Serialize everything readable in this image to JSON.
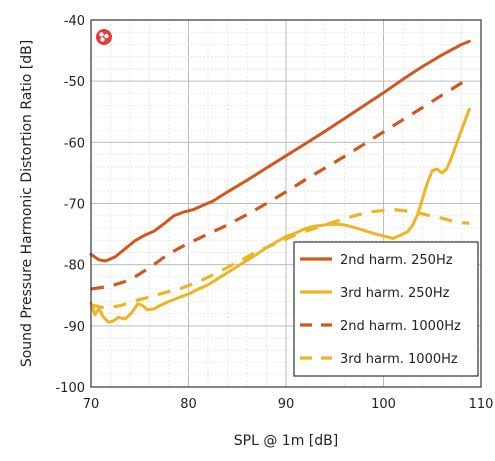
{
  "chart_data": {
    "type": "line",
    "title": "",
    "xlabel": "SPL @ 1m [dB]",
    "ylabel": "Sound Pressure Harmonic Distortion Ratio [dB]",
    "xlim": [
      70,
      110
    ],
    "ylim": [
      -100,
      -40
    ],
    "x_ticks": [
      70,
      80,
      90,
      100,
      110
    ],
    "y_ticks": [
      -40,
      -50,
      -60,
      -70,
      -80,
      -90,
      -100
    ],
    "grid": true,
    "legend_position": "bottom-right",
    "series": [
      {
        "name": "2nd harm. 250Hz",
        "color": "#d4561c",
        "style": "solid",
        "points": [
          [
            70,
            -78.3
          ],
          [
            70.8,
            -79.2
          ],
          [
            71.5,
            -79.4
          ],
          [
            72.5,
            -78.7
          ],
          [
            73.5,
            -77.4
          ],
          [
            74.5,
            -76.1
          ],
          [
            75.5,
            -75.2
          ],
          [
            76.5,
            -74.5
          ],
          [
            77.5,
            -73.3
          ],
          [
            78.5,
            -72.0
          ],
          [
            79.5,
            -71.4
          ],
          [
            80.5,
            -71.0
          ],
          [
            81.5,
            -70.3
          ],
          [
            82.5,
            -69.6
          ],
          [
            84,
            -68.1
          ],
          [
            86,
            -66.2
          ],
          [
            88,
            -64.2
          ],
          [
            90,
            -62.2
          ],
          [
            92,
            -60.2
          ],
          [
            94,
            -58.2
          ],
          [
            96,
            -56.1
          ],
          [
            98,
            -54.0
          ],
          [
            100,
            -51.9
          ],
          [
            102,
            -49.7
          ],
          [
            104,
            -47.6
          ],
          [
            106,
            -45.7
          ],
          [
            108,
            -44.0
          ],
          [
            108.8,
            -43.5
          ]
        ]
      },
      {
        "name": "3rd harm. 250Hz",
        "color": "#f0b323",
        "style": "solid",
        "points": [
          [
            70,
            -86.3
          ],
          [
            70.4,
            -88.2
          ],
          [
            70.8,
            -87.2
          ],
          [
            71.3,
            -88.6
          ],
          [
            71.8,
            -89.4
          ],
          [
            72.3,
            -89.2
          ],
          [
            72.8,
            -88.6
          ],
          [
            73.5,
            -88.9
          ],
          [
            74.2,
            -87.8
          ],
          [
            74.8,
            -86.4
          ],
          [
            75.3,
            -86.7
          ],
          [
            75.8,
            -87.4
          ],
          [
            76.5,
            -87.2
          ],
          [
            77.2,
            -86.6
          ],
          [
            78,
            -86.0
          ],
          [
            79,
            -85.4
          ],
          [
            80,
            -84.8
          ],
          [
            81,
            -84.0
          ],
          [
            82,
            -83.3
          ],
          [
            83,
            -82.3
          ],
          [
            84,
            -81.3
          ],
          [
            85,
            -80.3
          ],
          [
            86,
            -79.3
          ],
          [
            87,
            -78.3
          ],
          [
            88,
            -77.2
          ],
          [
            89,
            -76.3
          ],
          [
            90,
            -75.4
          ],
          [
            91,
            -74.8
          ],
          [
            92,
            -74.1
          ],
          [
            93,
            -73.7
          ],
          [
            94,
            -73.5
          ],
          [
            95,
            -73.4
          ],
          [
            96,
            -73.5
          ],
          [
            97,
            -73.9
          ],
          [
            98,
            -74.4
          ],
          [
            99,
            -74.9
          ],
          [
            100,
            -75.3
          ],
          [
            101,
            -75.7
          ],
          [
            102,
            -75.0
          ],
          [
            102.5,
            -74.6
          ],
          [
            103,
            -73.5
          ],
          [
            103.5,
            -71.8
          ],
          [
            104,
            -69.2
          ],
          [
            104.5,
            -66.6
          ],
          [
            105,
            -64.6
          ],
          [
            105.5,
            -64.4
          ],
          [
            106,
            -65.0
          ],
          [
            106.5,
            -64.3
          ],
          [
            107,
            -62.4
          ],
          [
            107.5,
            -60.2
          ],
          [
            108,
            -58.0
          ],
          [
            108.8,
            -54.6
          ]
        ]
      },
      {
        "name": "2nd harm. 1000Hz",
        "color": "#d4561c",
        "style": "dashed",
        "points": [
          [
            70,
            -84.0
          ],
          [
            72,
            -83.5
          ],
          [
            74,
            -82.5
          ],
          [
            76,
            -80.5
          ],
          [
            78,
            -78.2
          ],
          [
            80,
            -76.5
          ],
          [
            82,
            -75.0
          ],
          [
            84,
            -73.5
          ],
          [
            86,
            -71.8
          ],
          [
            88,
            -70.0
          ],
          [
            90,
            -68.1
          ],
          [
            92,
            -66.1
          ],
          [
            94,
            -64.2
          ],
          [
            96,
            -62.3
          ],
          [
            98,
            -60.3
          ],
          [
            100,
            -58.3
          ],
          [
            102,
            -56.3
          ],
          [
            104,
            -54.3
          ],
          [
            106,
            -52.3
          ],
          [
            108,
            -50.3
          ],
          [
            108.8,
            -49.5
          ]
        ]
      },
      {
        "name": "3rd harm. 1000Hz",
        "color": "#f0b323",
        "style": "dashed",
        "points": [
          [
            70,
            -86.6
          ],
          [
            71.5,
            -87.1
          ],
          [
            73,
            -86.7
          ],
          [
            74.5,
            -85.9
          ],
          [
            76,
            -85.3
          ],
          [
            77.5,
            -84.6
          ],
          [
            79,
            -84.0
          ],
          [
            81,
            -82.8
          ],
          [
            83,
            -81.3
          ],
          [
            85,
            -79.6
          ],
          [
            87,
            -77.9
          ],
          [
            89,
            -76.5
          ],
          [
            91,
            -75.1
          ],
          [
            93,
            -74.0
          ],
          [
            95,
            -73.0
          ],
          [
            97,
            -72.0
          ],
          [
            99,
            -71.3
          ],
          [
            101,
            -71.0
          ],
          [
            103,
            -71.3
          ],
          [
            104.5,
            -71.9
          ],
          [
            106,
            -72.4
          ],
          [
            107.5,
            -73.1
          ],
          [
            108.8,
            -73.2
          ]
        ]
      }
    ]
  },
  "icons": {
    "corner_badge": "red-circle-dots-icon"
  }
}
